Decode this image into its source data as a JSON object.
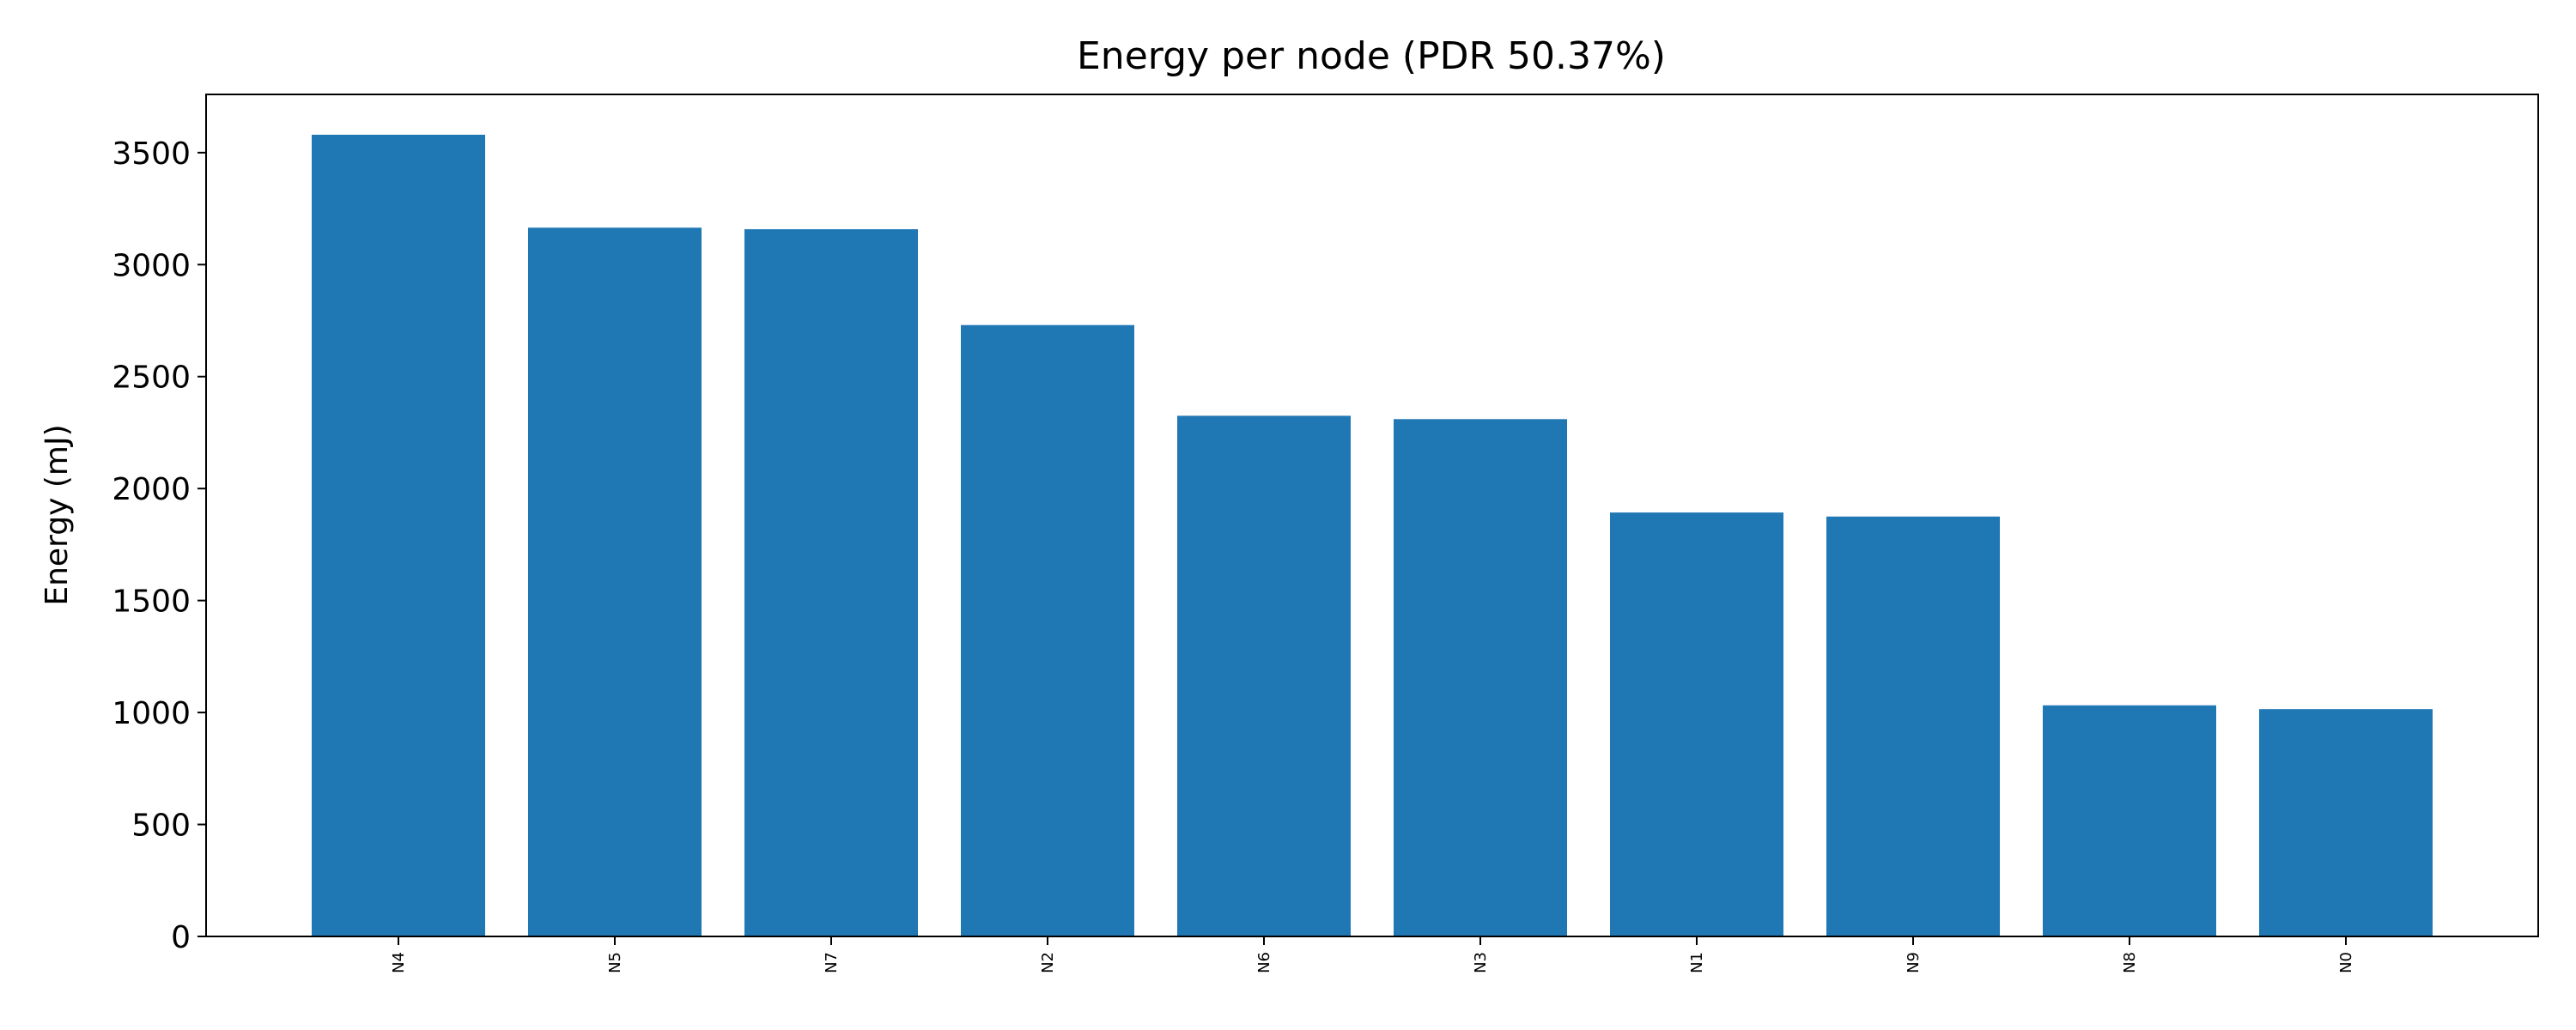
{
  "chart_data": {
    "type": "bar",
    "title": "Energy per node (PDR 50.37%)",
    "xlabel": "",
    "ylabel": "Energy (mJ)",
    "categories": [
      "N4",
      "N5",
      "N7",
      "N2",
      "N6",
      "N3",
      "N1",
      "N9",
      "N8",
      "N0"
    ],
    "values": [
      3580,
      3165,
      3158,
      2730,
      2325,
      2310,
      1893,
      1875,
      1032,
      1015
    ],
    "ylim": [
      0,
      3760
    ],
    "yticks": [
      0,
      500,
      1000,
      1500,
      2000,
      2500,
      3000,
      3500
    ],
    "grid": false,
    "legend": "none",
    "bar_color": "#1f77b4"
  }
}
